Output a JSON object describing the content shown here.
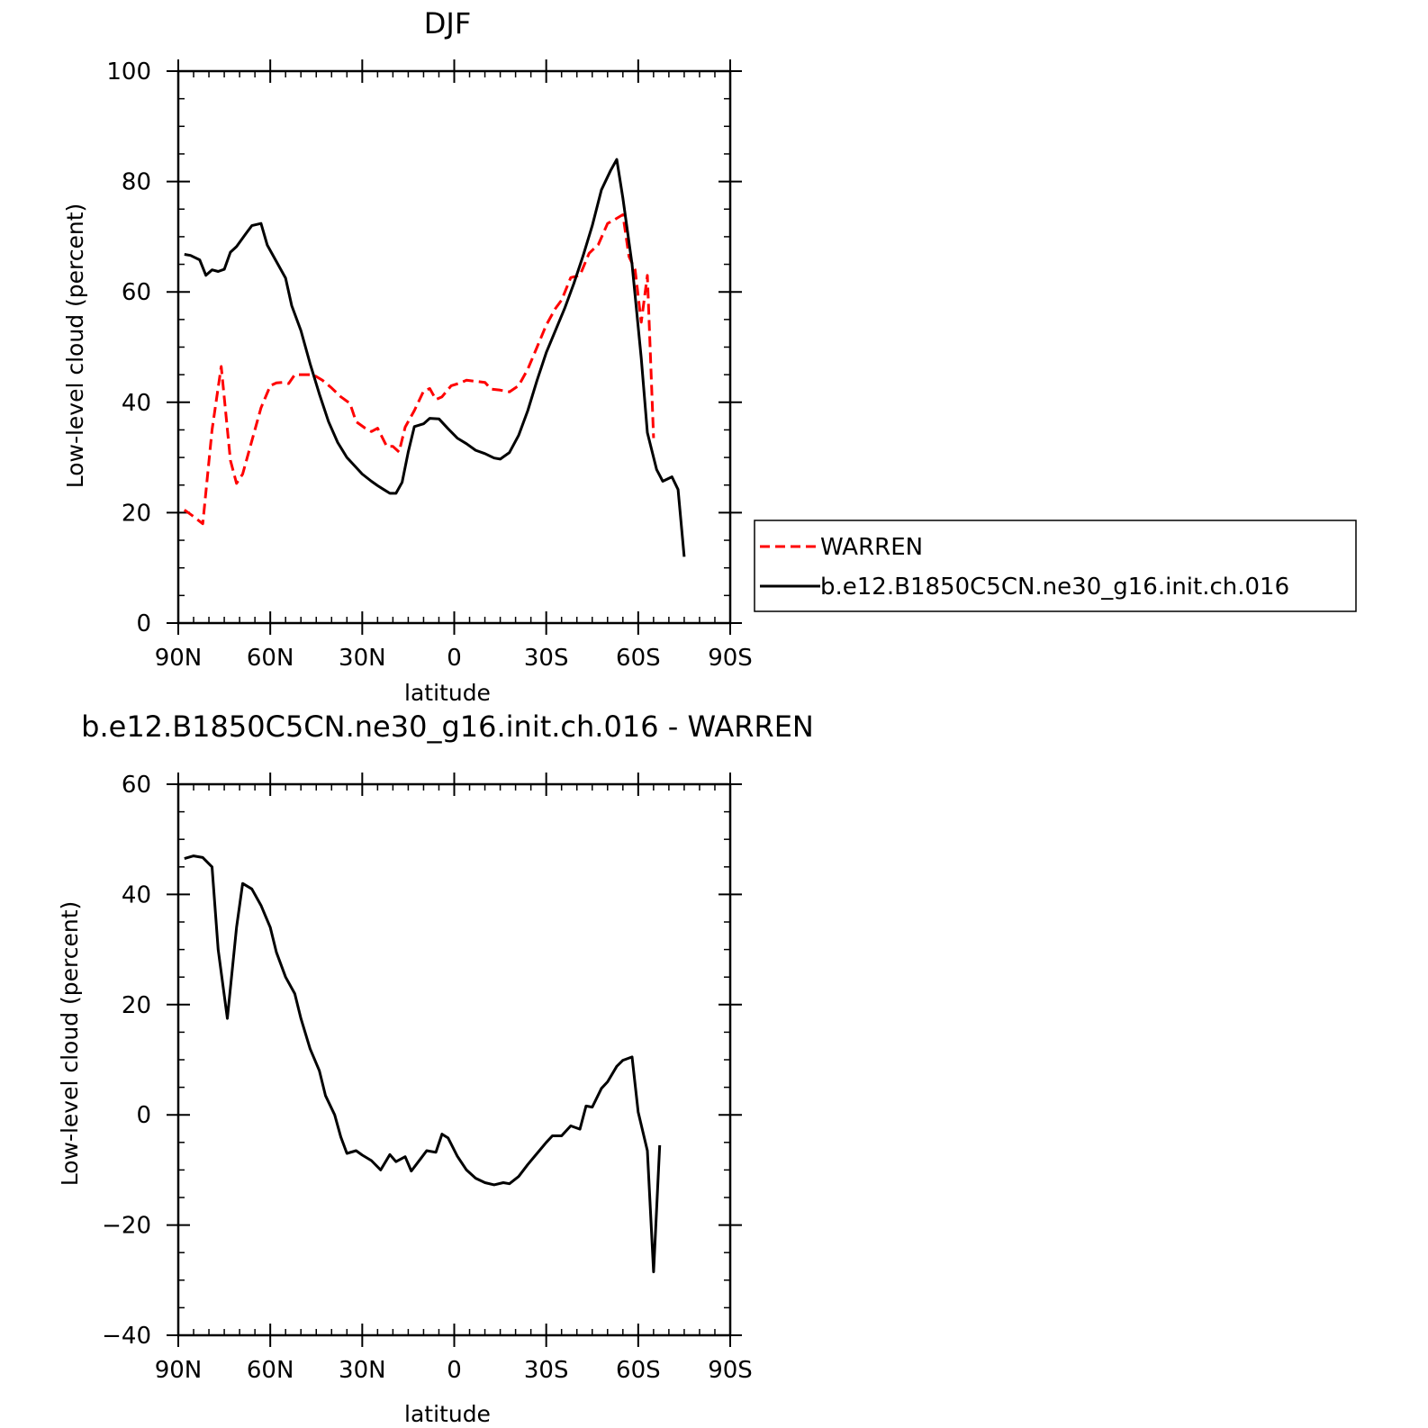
{
  "chart_data": [
    {
      "type": "line",
      "title": "DJF",
      "xlabel": "latitude",
      "ylabel": "Low-level cloud (percent)",
      "xlim": [
        90,
        -90
      ],
      "ylim": [
        0,
        100
      ],
      "xticks": [
        90,
        60,
        30,
        0,
        -30,
        -60,
        -90
      ],
      "xtick_labels": [
        "90N",
        "60N",
        "30N",
        "0",
        "30S",
        "60S",
        "90S"
      ],
      "yticks": [
        0,
        20,
        40,
        60,
        80,
        100
      ],
      "ytick_labels": [
        "0",
        "20",
        "40",
        "60",
        "80",
        "100"
      ],
      "legend": {
        "placement": "right",
        "entries": [
          "WARREN",
          "b.e12.B1850C5CN.ne30_g16.init.ch.016"
        ]
      },
      "series": [
        {
          "name": "WARREN",
          "color": "#ff0000",
          "dash": "dashed",
          "points": [
            [
              88,
              20.5
            ],
            [
              85,
              19.3
            ],
            [
              82,
              18
            ],
            [
              79,
              35
            ],
            [
              76,
              46.5
            ],
            [
              73,
              29.5
            ],
            [
              71,
              25.3
            ],
            [
              69,
              27
            ],
            [
              66,
              33
            ],
            [
              63,
              39
            ],
            [
              60,
              43
            ],
            [
              58,
              43.5
            ],
            [
              56,
              43.6
            ],
            [
              54,
              43.4
            ],
            [
              52,
              45
            ],
            [
              49,
              45
            ],
            [
              46,
              45
            ],
            [
              43,
              44
            ],
            [
              40,
              42.6
            ],
            [
              37,
              41
            ],
            [
              34,
              39.8
            ],
            [
              32,
              36.5
            ],
            [
              29,
              35.3
            ],
            [
              27,
              34.7
            ],
            [
              25,
              35.3
            ],
            [
              22,
              32
            ],
            [
              20,
              32
            ],
            [
              18,
              31
            ],
            [
              16,
              35.5
            ],
            [
              13,
              38.5
            ],
            [
              10,
              42
            ],
            [
              8,
              42.5
            ],
            [
              6,
              40.5
            ],
            [
              4,
              41
            ],
            [
              1,
              43
            ],
            [
              -2,
              43.5
            ],
            [
              -4,
              44
            ],
            [
              -7,
              43.8
            ],
            [
              -10,
              43.6
            ],
            [
              -12,
              42.4
            ],
            [
              -15,
              42.2
            ],
            [
              -18,
              41.9
            ],
            [
              -21,
              43
            ],
            [
              -24,
              46
            ],
            [
              -27,
              50
            ],
            [
              -30,
              54
            ],
            [
              -33,
              57
            ],
            [
              -35,
              58.5
            ],
            [
              -38,
              62.6
            ],
            [
              -41,
              63
            ],
            [
              -44,
              67
            ],
            [
              -47,
              68.6
            ],
            [
              -50,
              72.4
            ],
            [
              -52,
              73
            ],
            [
              -55,
              74
            ],
            [
              -57,
              66.4
            ],
            [
              -59,
              64
            ],
            [
              -61,
              54.5
            ],
            [
              -63,
              63
            ],
            [
              -65,
              33.5
            ]
          ]
        },
        {
          "name": "b.e12.B1850C5CN.ne30_g16.init.ch.016",
          "color": "#000000",
          "dash": "solid",
          "points": [
            [
              88,
              66.8
            ],
            [
              86,
              66.6
            ],
            [
              83,
              65.8
            ],
            [
              81,
              63
            ],
            [
              79,
              64
            ],
            [
              77,
              63.7
            ],
            [
              75,
              64.1
            ],
            [
              73,
              67.2
            ],
            [
              71,
              68.2
            ],
            [
              68,
              70.5
            ],
            [
              66,
              72
            ],
            [
              63,
              72.4
            ],
            [
              61,
              68.5
            ],
            [
              58,
              65.5
            ],
            [
              55,
              62.5
            ],
            [
              53,
              57.5
            ],
            [
              50,
              53
            ],
            [
              47,
              47
            ],
            [
              44,
              41.5
            ],
            [
              41,
              36.5
            ],
            [
              38,
              32.7
            ],
            [
              35,
              30
            ],
            [
              32,
              28.2
            ],
            [
              30,
              27
            ],
            [
              27,
              25.7
            ],
            [
              25,
              24.9
            ],
            [
              23,
              24.2
            ],
            [
              21,
              23.5
            ],
            [
              19,
              23.5
            ],
            [
              17,
              25.5
            ],
            [
              15,
              31
            ],
            [
              13,
              35.6
            ],
            [
              10,
              36.1
            ],
            [
              8,
              37.1
            ],
            [
              5,
              37
            ],
            [
              2,
              35.2
            ],
            [
              -1,
              33.5
            ],
            [
              -4,
              32.5
            ],
            [
              -7,
              31.3
            ],
            [
              -10,
              30.7
            ],
            [
              -13,
              29.9
            ],
            [
              -15,
              29.7
            ],
            [
              -18,
              30.9
            ],
            [
              -21,
              34
            ],
            [
              -24,
              38.5
            ],
            [
              -27,
              44
            ],
            [
              -30,
              49
            ],
            [
              -33,
              53
            ],
            [
              -36,
              57
            ],
            [
              -39,
              61.5
            ],
            [
              -42,
              66.5
            ],
            [
              -45,
              72
            ],
            [
              -48,
              78.5
            ],
            [
              -51,
              82
            ],
            [
              -53,
              84
            ],
            [
              -55,
              77
            ],
            [
              -58,
              65
            ],
            [
              -61,
              48
            ],
            [
              -63,
              34.5
            ],
            [
              -66,
              27.8
            ],
            [
              -68,
              25.7
            ],
            [
              -71,
              26.5
            ],
            [
              -73,
              24.2
            ],
            [
              -75,
              12
            ]
          ]
        }
      ]
    },
    {
      "type": "line",
      "title": "b.e12.B1850C5CN.ne30_g16.init.ch.016 - WARREN",
      "xlabel": "latitude",
      "ylabel": "Low-level cloud (percent)",
      "xlim": [
        90,
        -90
      ],
      "ylim": [
        -40,
        60
      ],
      "xticks": [
        90,
        60,
        30,
        0,
        -30,
        -60,
        -90
      ],
      "xtick_labels": [
        "90N",
        "60N",
        "30N",
        "0",
        "30S",
        "60S",
        "90S"
      ],
      "yticks": [
        -40,
        -20,
        0,
        20,
        40,
        60
      ],
      "ytick_labels": [
        "−40",
        "−20",
        "0",
        "20",
        "40",
        "60"
      ],
      "series": [
        {
          "name": "b.e12.B1850C5CN.ne30_g16.init.ch.016 - WARREN",
          "color": "#000000",
          "dash": "solid",
          "points": [
            [
              88,
              46.5
            ],
            [
              85,
              47
            ],
            [
              82,
              46.7
            ],
            [
              79,
              45
            ],
            [
              77,
              30
            ],
            [
              74,
              17.5
            ],
            [
              71,
              34
            ],
            [
              69,
              42
            ],
            [
              66,
              41
            ],
            [
              63,
              38
            ],
            [
              60,
              34
            ],
            [
              58,
              29.5
            ],
            [
              55,
              25
            ],
            [
              52,
              22
            ],
            [
              50,
              17.5
            ],
            [
              47,
              12
            ],
            [
              44,
              8
            ],
            [
              42,
              3.5
            ],
            [
              39,
              0
            ],
            [
              37,
              -4
            ],
            [
              35,
              -7
            ],
            [
              32,
              -6.5
            ],
            [
              30,
              -7.3
            ],
            [
              27,
              -8.3
            ],
            [
              24,
              -10
            ],
            [
              21,
              -7.2
            ],
            [
              19,
              -8.5
            ],
            [
              16,
              -7.6
            ],
            [
              14,
              -10.2
            ],
            [
              11,
              -8
            ],
            [
              9,
              -6.5
            ],
            [
              6,
              -6.8
            ],
            [
              4,
              -3.5
            ],
            [
              2,
              -4.2
            ],
            [
              -1,
              -7.5
            ],
            [
              -4,
              -10
            ],
            [
              -7,
              -11.5
            ],
            [
              -10,
              -12.3
            ],
            [
              -13,
              -12.7
            ],
            [
              -16,
              -12.3
            ],
            [
              -18,
              -12.5
            ],
            [
              -21,
              -11.2
            ],
            [
              -24,
              -9
            ],
            [
              -27,
              -7
            ],
            [
              -30,
              -5
            ],
            [
              -32,
              -3.8
            ],
            [
              -35,
              -3.8
            ],
            [
              -38,
              -2
            ],
            [
              -41,
              -2.6
            ],
            [
              -43,
              1.6
            ],
            [
              -45,
              1.4
            ],
            [
              -48,
              4.8
            ],
            [
              -50,
              6
            ],
            [
              -53,
              8.8
            ],
            [
              -55,
              9.9
            ],
            [
              -58,
              10.5
            ],
            [
              -60,
              0.5
            ],
            [
              -63,
              -6.5
            ],
            [
              -65,
              -28.5
            ],
            [
              -67,
              -5.5
            ]
          ]
        }
      ]
    }
  ]
}
